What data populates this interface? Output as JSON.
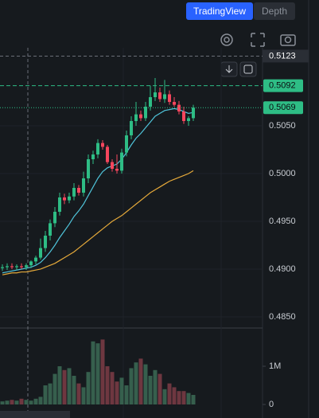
{
  "tabs": [
    "TradingView",
    "Depth"
  ],
  "chart_data": {
    "type": "candlestick",
    "up_color": "#2ebd85",
    "down_color": "#f6465d",
    "open": [
      0.4901,
      0.4902,
      0.4903,
      0.4902,
      0.4903,
      0.4902,
      0.4904,
      0.4908,
      0.4912,
      0.4922,
      0.4935,
      0.4948,
      0.496,
      0.4975,
      0.4972,
      0.4976,
      0.4985,
      0.498,
      0.4995,
      0.5015,
      0.502,
      0.5032,
      0.5028,
      0.5012,
      0.5005,
      0.5003,
      0.5022,
      0.504,
      0.5055,
      0.5062,
      0.5058,
      0.507,
      0.508,
      0.5085,
      0.5078,
      0.5083,
      0.5075,
      0.5072,
      0.5065,
      0.5055,
      0.5058
    ],
    "high": [
      0.4905,
      0.4906,
      0.4906,
      0.4905,
      0.4906,
      0.4906,
      0.4909,
      0.4914,
      0.4932,
      0.494,
      0.4952,
      0.4965,
      0.498,
      0.4979,
      0.498,
      0.499,
      0.4988,
      0.5002,
      0.502,
      0.5024,
      0.5036,
      0.5035,
      0.503,
      0.5015,
      0.502,
      0.5026,
      0.5045,
      0.506,
      0.5075,
      0.5066,
      0.5075,
      0.5092,
      0.51,
      0.509,
      0.5098,
      0.5087,
      0.508,
      0.5076,
      0.507,
      0.506,
      0.5072
    ],
    "low": [
      0.4898,
      0.4899,
      0.49,
      0.4899,
      0.49,
      0.4899,
      0.4901,
      0.4905,
      0.491,
      0.4918,
      0.493,
      0.4944,
      0.4956,
      0.4968,
      0.4969,
      0.4972,
      0.4977,
      0.4976,
      0.499,
      0.501,
      0.5016,
      0.5025,
      0.501,
      0.5002,
      0.5,
      0.5,
      0.5018,
      0.5036,
      0.505,
      0.5055,
      0.5055,
      0.5066,
      0.5076,
      0.5075,
      0.5074,
      0.5072,
      0.507,
      0.5062,
      0.5052,
      0.505,
      0.5055
    ],
    "close": [
      0.4902,
      0.4903,
      0.4902,
      0.4903,
      0.4902,
      0.4904,
      0.4908,
      0.4912,
      0.4922,
      0.4935,
      0.4948,
      0.496,
      0.4975,
      0.4972,
      0.4976,
      0.4985,
      0.498,
      0.4995,
      0.5015,
      0.502,
      0.5032,
      0.5028,
      0.5012,
      0.5005,
      0.5003,
      0.5022,
      0.504,
      0.5055,
      0.5062,
      0.5058,
      0.507,
      0.508,
      0.5085,
      0.5078,
      0.5083,
      0.5075,
      0.5072,
      0.5065,
      0.5055,
      0.5058,
      0.5069
    ],
    "series": [
      {
        "color": "#4fc3d9",
        "values": [
          0.4896,
          0.4897,
          0.4898,
          0.4899,
          0.49,
          0.4901,
          0.4902,
          0.4904,
          0.4907,
          0.4912,
          0.4918,
          0.4925,
          0.4933,
          0.494,
          0.4947,
          0.4955,
          0.4961,
          0.4968,
          0.4977,
          0.4986,
          0.4995,
          0.5002,
          0.5006,
          0.5008,
          0.501,
          0.5015,
          0.5022,
          0.503,
          0.5037,
          0.5042,
          0.5048,
          0.5054,
          0.506,
          0.5063,
          0.5066,
          0.5067,
          0.5068,
          0.5067,
          0.5065,
          0.5063,
          0.5064
        ]
      },
      {
        "color": "#e5a93a",
        "values": [
          0.4894,
          0.4895,
          0.4896,
          0.4896,
          0.4897,
          0.4897,
          0.4898,
          0.4899,
          0.49,
          0.4902,
          0.4904,
          0.4906,
          0.4909,
          0.4912,
          0.4915,
          0.4918,
          0.4922,
          0.4926,
          0.493,
          0.4934,
          0.4938,
          0.4942,
          0.4946,
          0.495,
          0.4953,
          0.4956,
          0.496,
          0.4964,
          0.4968,
          0.4972,
          0.4976,
          0.498,
          0.4983,
          0.4986,
          0.4989,
          0.4992,
          0.4994,
          0.4996,
          0.4998,
          0.5,
          0.5003
        ]
      }
    ],
    "volume": [
      80000,
      100000,
      120000,
      100000,
      150000,
      120000,
      100000,
      150000,
      200000,
      500000,
      550000,
      800000,
      1000000,
      900000,
      950000,
      750000,
      550000,
      450000,
      850000,
      1650000,
      1600000,
      1700000,
      1000000,
      850000,
      600000,
      700000,
      500000,
      950000,
      1100000,
      1200000,
      1050000,
      750000,
      900000,
      800000,
      400000,
      550000,
      450000,
      350000,
      350000,
      300000,
      250000
    ],
    "ylim": [
      0.48383,
      0.51317
    ],
    "yticks": [
      {
        "value": 0.485,
        "label": "0.4850"
      },
      {
        "value": 0.49,
        "label": "0.4900"
      },
      {
        "value": 0.495,
        "label": "0.4950"
      },
      {
        "value": 0.5,
        "label": "0.5000"
      },
      {
        "value": 0.505,
        "label": "0.5050"
      }
    ],
    "volume_lim": [
      0,
      2000000
    ],
    "volume_ticks": [
      0,
      {
        "value": 1000000,
        "label": "1M"
      }
    ],
    "crosshair_price": 0.5123,
    "price_lines": [
      0.5092,
      0.5069
    ]
  }
}
